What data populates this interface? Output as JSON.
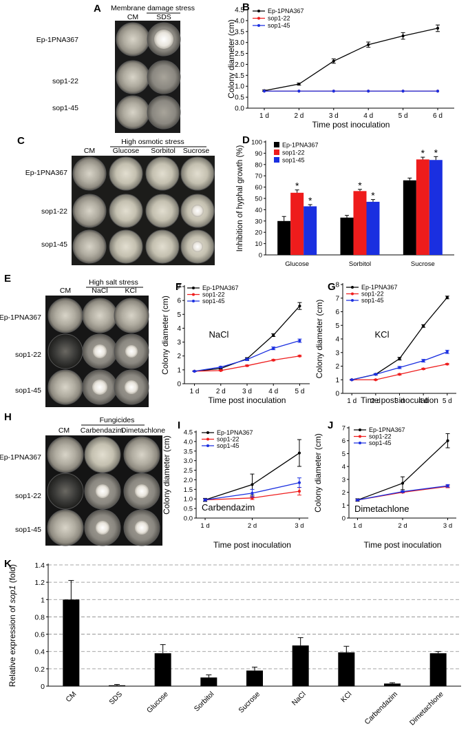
{
  "panels": {
    "A": {
      "letter": "A",
      "header": "Membrane damage stress",
      "columns": [
        "CM",
        "SDS"
      ],
      "rows": [
        "Ep-1PNA367",
        "sop1-22",
        "sop1-45"
      ]
    },
    "C": {
      "letter": "C",
      "header": "High osmotic stress",
      "columns": [
        "CM",
        "Glucose",
        "Sorbitol",
        "Sucrose"
      ],
      "rows": [
        "Ep-1PNA367",
        "sop1-22",
        "sop1-45"
      ]
    },
    "E": {
      "letter": "E",
      "header": "High salt stress",
      "columns": [
        "CM",
        "NaCl",
        "KCl"
      ],
      "rows": [
        "Ep-1PNA367",
        "sop1-22",
        "sop1-45"
      ]
    },
    "H": {
      "letter": "H",
      "header": "Fungicides",
      "columns": [
        "CM",
        "Carbendazim",
        "Dimetachlone"
      ],
      "rows": [
        "Ep-1PNA367",
        "sop1-22",
        "sop1-45"
      ]
    }
  },
  "colors": {
    "wt": "#000000",
    "sop1_22": "#ee1c1c",
    "sop1_45": "#1a2fe0",
    "bar": "#000000",
    "grid": "#888888"
  },
  "chart_data": [
    {
      "id": "B",
      "letter": "B",
      "type": "line",
      "title": "",
      "xlabel": "Time post inoculation",
      "ylabel": "Colony diameter (cm)",
      "categories": [
        "1 d",
        "2 d",
        "3 d",
        "4 d",
        "5 d",
        "6 d"
      ],
      "yticks": [
        "0.0",
        "0.5",
        "1.0",
        "1.5",
        "2.0",
        "2.5",
        "3.0",
        "3.5",
        "4.0",
        "4.5"
      ],
      "ylim": [
        0,
        4.5
      ],
      "legend": "top-left",
      "series": [
        {
          "name": "Ep-1PNA367",
          "color": "#000000",
          "values": [
            0.8,
            1.1,
            2.15,
            2.9,
            3.3,
            3.65
          ],
          "err": [
            0.03,
            0.05,
            0.1,
            0.12,
            0.15,
            0.15
          ]
        },
        {
          "name": "sop1-22",
          "color": "#ee1c1c",
          "values": [
            0.78,
            0.78,
            0.78,
            0.78,
            0.78,
            0.78
          ],
          "err": [
            0,
            0,
            0,
            0,
            0,
            0
          ]
        },
        {
          "name": "sop1-45",
          "color": "#1a2fe0",
          "values": [
            0.78,
            0.78,
            0.78,
            0.78,
            0.78,
            0.78
          ],
          "err": [
            0,
            0,
            0,
            0,
            0,
            0
          ]
        }
      ]
    },
    {
      "id": "D",
      "letter": "D",
      "type": "bar",
      "title": "",
      "xlabel": "",
      "ylabel": "Inhibition of hyphal growth (%)",
      "categories": [
        "Glucose",
        "Sorbitol",
        "Sucrose"
      ],
      "yticks": [
        "0",
        "10",
        "20",
        "30",
        "40",
        "50",
        "60",
        "70",
        "80",
        "90",
        "100"
      ],
      "ylim": [
        0,
        100
      ],
      "legend": "top-left",
      "series": [
        {
          "name": "Ep-1PNA367",
          "color": "#000000",
          "values": [
            30,
            33,
            66
          ],
          "err": [
            4,
            2,
            2
          ],
          "mark": [
            "",
            "",
            ""
          ]
        },
        {
          "name": "sop1-22",
          "color": "#ee1c1c",
          "values": [
            55,
            56.5,
            84.5
          ],
          "err": [
            2.5,
            1.5,
            2
          ],
          "mark": [
            "*",
            "*",
            "*"
          ]
        },
        {
          "name": "sop1-45",
          "color": "#1a2fe0",
          "values": [
            43,
            47,
            84
          ],
          "err": [
            1.5,
            2,
            3
          ],
          "mark": [
            "*",
            "*",
            "*"
          ]
        }
      ]
    },
    {
      "id": "F",
      "letter": "F",
      "type": "line",
      "title": "",
      "annotation": "NaCl",
      "xlabel": "Time post inoculation",
      "ylabel": "Colony diameter (cm)",
      "categories": [
        "1 d",
        "2 d",
        "3 d",
        "4 d",
        "5 d"
      ],
      "yticks": [
        "0",
        "1",
        "2",
        "3",
        "4",
        "5",
        "6",
        "7"
      ],
      "ylim": [
        0,
        7
      ],
      "legend": "top-left",
      "series": [
        {
          "name": "Ep-1PNA367",
          "color": "#000000",
          "values": [
            0.9,
            1.1,
            1.8,
            3.5,
            5.6
          ],
          "err": [
            0.03,
            0.05,
            0.08,
            0.1,
            0.25
          ]
        },
        {
          "name": "sop1-22",
          "color": "#ee1c1c",
          "values": [
            0.9,
            0.95,
            1.3,
            1.7,
            2.0
          ],
          "err": [
            0.03,
            0.03,
            0.05,
            0.05,
            0.05
          ]
        },
        {
          "name": "sop1-45",
          "color": "#1a2fe0",
          "values": [
            0.9,
            1.2,
            1.75,
            2.55,
            3.1
          ],
          "err": [
            0.03,
            0.05,
            0.08,
            0.1,
            0.12
          ]
        }
      ]
    },
    {
      "id": "G",
      "letter": "G",
      "type": "line",
      "title": "",
      "annotation": "KCl",
      "xlabel": "Time post inoculation",
      "ylabel": "Colony diameter (cm)",
      "categories": [
        "1 d",
        "2 d",
        "3 d",
        "4 d",
        "5 d"
      ],
      "yticks": [
        "0",
        "1",
        "2",
        "3",
        "4",
        "5",
        "6",
        "7",
        "8"
      ],
      "ylim": [
        0,
        8
      ],
      "legend": "top-left",
      "series": [
        {
          "name": "Ep-1PNA367",
          "color": "#000000",
          "values": [
            1.0,
            1.4,
            2.55,
            4.95,
            7.05
          ],
          "err": [
            0.03,
            0.05,
            0.1,
            0.1,
            0.1
          ]
        },
        {
          "name": "sop1-22",
          "color": "#ee1c1c",
          "values": [
            1.0,
            1.0,
            1.4,
            1.8,
            2.15
          ],
          "err": [
            0.03,
            0.03,
            0.05,
            0.05,
            0.05
          ]
        },
        {
          "name": "sop1-45",
          "color": "#1a2fe0",
          "values": [
            1.0,
            1.4,
            1.9,
            2.4,
            3.05
          ],
          "err": [
            0.03,
            0.05,
            0.08,
            0.1,
            0.12
          ]
        }
      ]
    },
    {
      "id": "I",
      "letter": "I",
      "type": "line",
      "title": "",
      "annotation": "Carbendazim",
      "xlabel": "Time post inoculation",
      "ylabel": "Colony diameter (cm)",
      "categories": [
        "1 d",
        "2 d",
        "3 d"
      ],
      "yticks": [
        "0.0",
        "0.5",
        "1.0",
        "1.5",
        "2.0",
        "2.5",
        "3.0",
        "3.5",
        "4.0",
        "4.5"
      ],
      "ylim": [
        0,
        4.5
      ],
      "legend": "top-left",
      "series": [
        {
          "name": "Ep-1PNA367",
          "color": "#000000",
          "values": [
            0.95,
            1.75,
            3.4
          ],
          "err": [
            0.08,
            0.55,
            0.7
          ]
        },
        {
          "name": "sop1-22",
          "color": "#ee1c1c",
          "values": [
            0.95,
            1.05,
            1.4
          ],
          "err": [
            0.05,
            0.08,
            0.2
          ]
        },
        {
          "name": "sop1-45",
          "color": "#1a2fe0",
          "values": [
            0.95,
            1.3,
            1.85
          ],
          "err": [
            0.05,
            0.2,
            0.25
          ]
        }
      ]
    },
    {
      "id": "J",
      "letter": "J",
      "type": "line",
      "title": "",
      "annotation": "Dimetachlone",
      "xlabel": "Time post inoculation",
      "ylabel": "Colony diameter (cm)",
      "categories": [
        "1 d",
        "2 d",
        "3 d"
      ],
      "yticks": [
        "0",
        "1",
        "2",
        "3",
        "4",
        "5",
        "6",
        "7"
      ],
      "ylim": [
        0,
        7
      ],
      "legend": "top-left",
      "series": [
        {
          "name": "Ep-1PNA367",
          "color": "#000000",
          "values": [
            1.4,
            2.7,
            6.0
          ],
          "err": [
            0.1,
            0.5,
            0.55
          ]
        },
        {
          "name": "sop1-22",
          "color": "#ee1c1c",
          "values": [
            1.4,
            2.0,
            2.45
          ],
          "err": [
            0.05,
            0.05,
            0.1
          ]
        },
        {
          "name": "sop1-45",
          "color": "#1a2fe0",
          "values": [
            1.4,
            2.05,
            2.5
          ],
          "err": [
            0.05,
            0.05,
            0.1
          ]
        }
      ]
    },
    {
      "id": "K",
      "letter": "K",
      "type": "bar",
      "title": "",
      "xlabel": "",
      "ylabel_pre": "Relative expression of ",
      "ylabel_gene": "sop1",
      "ylabel_post": " (fold)",
      "categories": [
        "CM",
        "SDS",
        "Glucose",
        "Sorbitol",
        "Sucrose",
        "NaCl",
        "KCl",
        "Carbendazim",
        "Dimetachlone"
      ],
      "yticks": [
        "0",
        "0.2",
        "0.4",
        "0.6",
        "0.8",
        "1",
        "1.2",
        "1.4"
      ],
      "ylim": [
        0,
        1.4
      ],
      "grid": true,
      "values": [
        1.0,
        0.01,
        0.38,
        0.1,
        0.18,
        0.47,
        0.39,
        0.03,
        0.38
      ],
      "err": [
        0.22,
        0.01,
        0.1,
        0.03,
        0.04,
        0.09,
        0.07,
        0.01,
        0.02
      ]
    }
  ]
}
